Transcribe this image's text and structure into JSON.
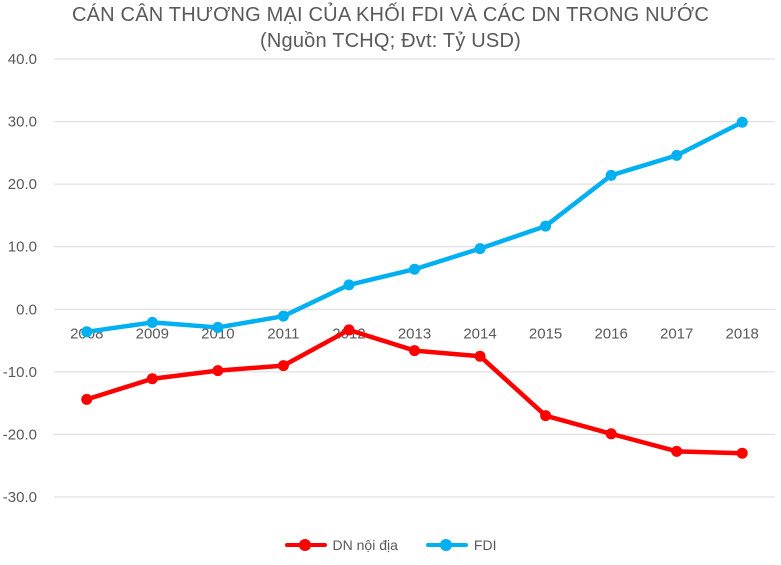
{
  "chart_data": {
    "type": "line",
    "title": "CÁN CÂN THƯƠNG MẠI CỦA KHỐI FDI VÀ CÁC DN TRONG NƯỚC",
    "subtitle": "(Nguồn TCHQ; Đvt: Tỷ USD)",
    "categories": [
      "2008",
      "2009",
      "2010",
      "2011",
      "2012",
      "2013",
      "2014",
      "2015",
      "2016",
      "2017",
      "2018"
    ],
    "ylim": [
      -30,
      40
    ],
    "yticks": [
      "40.0",
      "30.0",
      "20.0",
      "10.0",
      "0.0",
      "-10.0",
      "-20.0",
      "-30.0"
    ],
    "grid": true,
    "legend_position": "bottom",
    "series": [
      {
        "name": "DN nội địa",
        "color": "#ff0000",
        "values": [
          -14.4,
          -11.1,
          -9.8,
          -9.0,
          -3.3,
          -6.6,
          -7.5,
          -17.0,
          -19.9,
          -22.7,
          -23.0
        ]
      },
      {
        "name": "FDI",
        "color": "#00b0f0",
        "values": [
          -3.6,
          -2.1,
          -2.9,
          -1.1,
          3.9,
          6.4,
          9.7,
          13.3,
          21.4,
          24.6,
          29.9
        ]
      }
    ]
  }
}
